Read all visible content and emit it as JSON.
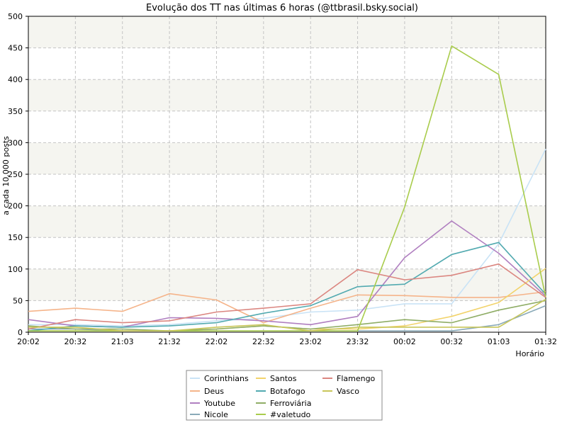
{
  "chart_data": {
    "type": "line",
    "title": "Evolução dos TT nas últimas 6 horas (@ttbrasil.bsky.social)",
    "xlabel": "Horário",
    "ylabel": "a cada 10.000 posts",
    "categories": [
      "20:02",
      "20:32",
      "21:03",
      "21:32",
      "22:02",
      "22:32",
      "23:02",
      "23:32",
      "00:02",
      "00:32",
      "01:03",
      "01:32"
    ],
    "ylim": [
      0,
      500
    ],
    "yticks": [
      0,
      50,
      100,
      150,
      200,
      250,
      300,
      350,
      400,
      450,
      500
    ],
    "grid": true,
    "legend_position": "bottom",
    "series": [
      {
        "name": "Corinthians",
        "color": "#c9e3f6",
        "values": [
          12,
          12,
          10,
          12,
          18,
          22,
          32,
          35,
          45,
          45,
          140,
          290
        ]
      },
      {
        "name": "Deus",
        "color": "#f5b48a",
        "values": [
          33,
          38,
          33,
          61,
          51,
          15,
          38,
          59,
          58,
          55,
          55,
          64
        ]
      },
      {
        "name": "Youtube",
        "color": "#b07fc0",
        "values": [
          20,
          10,
          8,
          23,
          22,
          18,
          12,
          25,
          118,
          176,
          125,
          57
        ]
      },
      {
        "name": "Nicole",
        "color": "#8aaab8",
        "values": [
          5,
          5,
          2,
          2,
          2,
          2,
          2,
          2,
          2,
          2,
          12,
          42
        ]
      },
      {
        "name": "Santos",
        "color": "#f2d36b",
        "values": [
          2,
          2,
          2,
          2,
          5,
          10,
          5,
          5,
          10,
          25,
          47,
          101
        ]
      },
      {
        "name": "Botafogo",
        "color": "#52aab0",
        "values": [
          2,
          10,
          8,
          10,
          15,
          30,
          42,
          72,
          76,
          123,
          142,
          60
        ]
      },
      {
        "name": "Ferroviária",
        "color": "#8fad66",
        "values": [
          10,
          5,
          5,
          2,
          5,
          10,
          5,
          12,
          20,
          15,
          35,
          50
        ]
      },
      {
        "name": "#valetudo",
        "color": "#a9cc4c",
        "values": [
          2,
          2,
          2,
          2,
          2,
          2,
          2,
          2,
          198,
          453,
          408,
          55
        ]
      },
      {
        "name": "Flamengo",
        "color": "#db8680",
        "values": [
          5,
          20,
          15,
          18,
          32,
          38,
          45,
          99,
          83,
          90,
          108,
          55
        ]
      },
      {
        "name": "Vasco",
        "color": "#c8c65a",
        "values": [
          8,
          8,
          2,
          2,
          8,
          12,
          2,
          8,
          8,
          8,
          8,
          52
        ]
      }
    ]
  }
}
